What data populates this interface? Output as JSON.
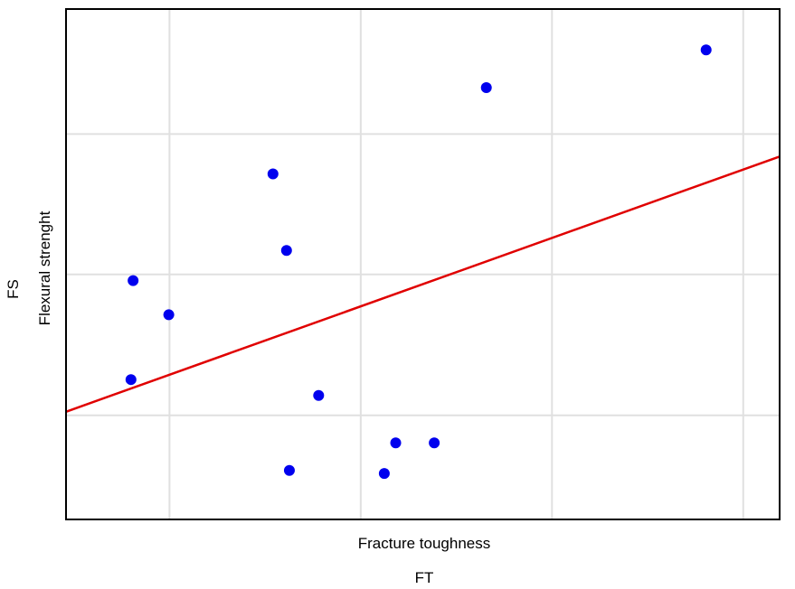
{
  "chart_data": {
    "type": "scatter",
    "xlabel": "Fracture toughness",
    "xlabel_symbol": "FT",
    "ylabel": "Flexural strenght",
    "ylabel_symbol": "FS",
    "xlim": [
      0,
      100
    ],
    "ylim": [
      0,
      100
    ],
    "x_gridlines": [
      14.5,
      41.3,
      68.1,
      94.9
    ],
    "y_gridlines": [
      20.4,
      48.0,
      75.5
    ],
    "grid": true,
    "tick_labels_shown": false,
    "points": [
      {
        "x": 9.1,
        "y": 27.4
      },
      {
        "x": 9.4,
        "y": 46.8
      },
      {
        "x": 14.4,
        "y": 40.1
      },
      {
        "x": 29.0,
        "y": 67.7
      },
      {
        "x": 30.9,
        "y": 52.7
      },
      {
        "x": 31.3,
        "y": 9.6
      },
      {
        "x": 35.4,
        "y": 24.3
      },
      {
        "x": 44.6,
        "y": 9.0
      },
      {
        "x": 46.2,
        "y": 15.0
      },
      {
        "x": 51.6,
        "y": 15.0
      },
      {
        "x": 58.9,
        "y": 84.6
      },
      {
        "x": 89.7,
        "y": 92.0
      }
    ],
    "trendline": {
      "x": [
        0,
        100
      ],
      "y": [
        21.1,
        71.1
      ]
    },
    "colors": {
      "points": "#0000ee",
      "trendline": "#e00000",
      "grid": "#e0e0e0",
      "frame": "#000000"
    }
  }
}
